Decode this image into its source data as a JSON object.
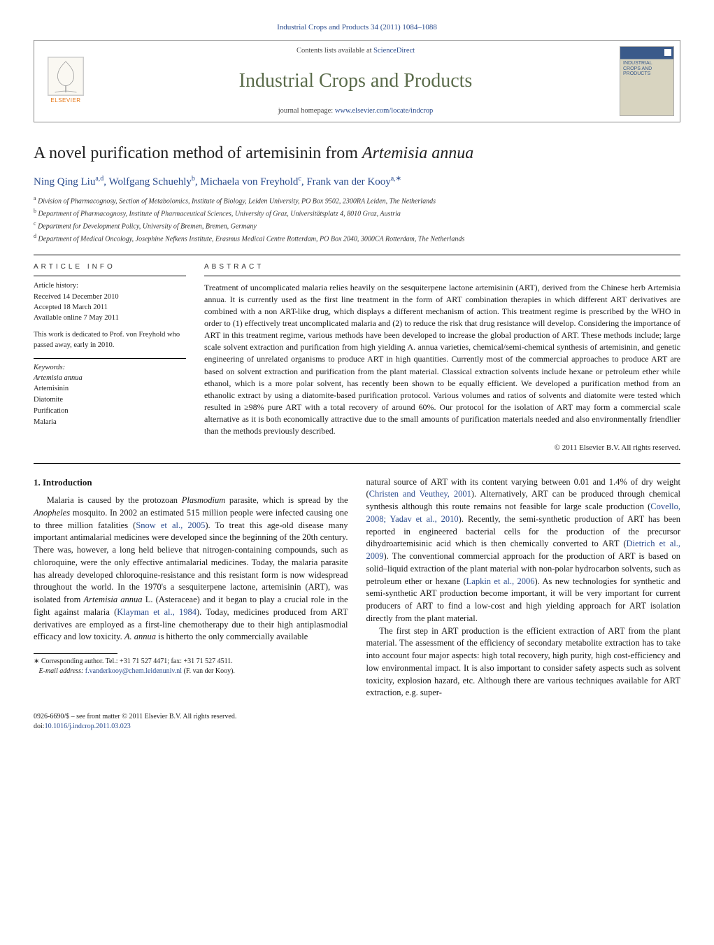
{
  "journal_ref": "Industrial Crops and Products 34 (2011) 1084–1088",
  "header": {
    "contents_prefix": "Contents lists available at ",
    "contents_link": "ScienceDirect",
    "journal_name": "Industrial Crops and Products",
    "homepage_prefix": "journal homepage: ",
    "homepage_link": "www.elsevier.com/locate/indcrop",
    "publisher_name": "ELSEVIER",
    "cover_label": "INDUSTRIAL CROPS AND PRODUCTS"
  },
  "title_pre": "A novel purification method of artemisinin from ",
  "title_ital": "Artemisia annua",
  "authors_html": "Ning Qing Liu<sup>a,d</sup>, Wolfgang Schuehly<sup>b</sup>, Michaela von Freyhold<sup>c</sup>, Frank van der Kooy<sup>a,∗</sup>",
  "affiliations": [
    "Division of Pharmacognosy, Section of Metabolomics, Institute of Biology, Leiden University, PO Box 9502, 2300RA Leiden, The Netherlands",
    "Department of Pharmacognosy, Institute of Pharmaceutical Sciences, University of Graz, Universitätsplatz 4, 8010 Graz, Austria",
    "Department for Development Policy, University of Bremen, Bremen, Germany",
    "Department of Medical Oncology, Josephine Nefkens Institute, Erasmus Medical Centre Rotterdam, PO Box 2040, 3000CA Rotterdam, The Netherlands"
  ],
  "aff_markers": [
    "a",
    "b",
    "c",
    "d"
  ],
  "labels": {
    "article_info": "article info",
    "abstract": "abstract",
    "history": "Article history:",
    "keywords": "Keywords:"
  },
  "history": {
    "received": "Received 14 December 2010",
    "accepted": "Accepted 18 March 2011",
    "online": "Available online 7 May 2011"
  },
  "dedication": "This work is dedicated to Prof. von Freyhold who passed away, early in 2010.",
  "keywords": [
    "Artemisia annua",
    "Artemisinin",
    "Diatomite",
    "Purification",
    "Malaria"
  ],
  "abstract": "Treatment of uncomplicated malaria relies heavily on the sesquiterpene lactone artemisinin (ART), derived from the Chinese herb Artemisia annua. It is currently used as the first line treatment in the form of ART combination therapies in which different ART derivatives are combined with a non ART-like drug, which displays a different mechanism of action. This treatment regime is prescribed by the WHO in order to (1) effectively treat uncomplicated malaria and (2) to reduce the risk that drug resistance will develop. Considering the importance of ART in this treatment regime, various methods have been developed to increase the global production of ART. These methods include; large scale solvent extraction and purification from high yielding A. annua varieties, chemical/semi-chemical synthesis of artemisinin, and genetic engineering of unrelated organisms to produce ART in high quantities. Currently most of the commercial approaches to produce ART are based on solvent extraction and purification from the plant material. Classical extraction solvents include hexane or petroleum ether while ethanol, which is a more polar solvent, has recently been shown to be equally efficient. We developed a purification method from an ethanolic extract by using a diatomite-based purification protocol. Various volumes and ratios of solvents and diatomite were tested which resulted in ≥98% pure ART with a total recovery of around 60%. Our protocol for the isolation of ART may form a commercial scale alternative as it is both economically attractive due to the small amounts of purification materials needed and also environmentally friendlier than the methods previously described.",
  "copyright": "© 2011 Elsevier B.V. All rights reserved.",
  "intro_heading": "1. Introduction",
  "intro_p1_a": "Malaria is caused by the protozoan ",
  "intro_p1_b": "Plasmodium",
  "intro_p1_c": " parasite, which is spread by the ",
  "intro_p1_d": "Anopheles",
  "intro_p1_e": " mosquito. In 2002 an estimated 515 million people were infected causing one to three million fatalities (",
  "intro_p1_cite1": "Snow et al., 2005",
  "intro_p1_f": "). To treat this age-old disease many important antimalarial medicines were developed since the beginning of the 20th century. There was, however, a long held believe that nitrogen-containing compounds, such as chloroquine, were the only effective antimalarial medicines. Today, the malaria parasite has already developed chloroquine-resistance and this resistant form is now widespread throughout the world. In the 1970's a sesquiterpene lactone, artemisinin (ART), was isolated from ",
  "intro_p1_g": "Artemisia annua",
  "intro_p1_h": " L. (Asteraceae) and it began to play a crucial role in the fight against malaria (",
  "intro_p1_cite2": "Klayman et al., 1984",
  "intro_p1_i": "). Today, medicines produced from ART derivatives are employed as a first-line chemotherapy due to their high antiplasmodial efficacy and low toxicity. ",
  "intro_p1_j": "A. annua",
  "intro_p1_k": " is hitherto the only commercially available",
  "intro_p2_a": "natural source of ART with its content varying between 0.01 and 1.4% of dry weight (",
  "intro_p2_cite1": "Christen and Veuthey, 2001",
  "intro_p2_b": "). Alternatively, ART can be produced through chemical synthesis although this route remains not feasible for large scale production (",
  "intro_p2_cite2": "Covello, 2008; Yadav et al., 2010",
  "intro_p2_c": "). Recently, the semi-synthetic production of ART has been reported in engineered bacterial cells for the production of the precursor dihydroartemisinic acid which is then chemically converted to ART (",
  "intro_p2_cite3": "Dietrich et al., 2009",
  "intro_p2_d": "). The conventional commercial approach for the production of ART is based on solid–liquid extraction of the plant material with non-polar hydrocarbon solvents, such as petroleum ether or hexane (",
  "intro_p2_cite4": "Lapkin et al., 2006",
  "intro_p2_e": "). As new technologies for synthetic and semi-synthetic ART production become important, it will be very important for current producers of ART to find a low-cost and high yielding approach for ART isolation directly from the plant material.",
  "intro_p3": "The first step in ART production is the efficient extraction of ART from the plant material. The assessment of the efficiency of secondary metabolite extraction has to take into account four major aspects: high total recovery, high purity, high cost-efficiency and low environmental impact. It is also important to consider safety aspects such as solvent toxicity, explosion hazard, etc. Although there are various techniques available for ART extraction, e.g. super-",
  "footnote": {
    "star": "∗",
    "corr": " Corresponding author. Tel.: +31 71 527 4471; fax: +31 71 527 4511.",
    "email_label": "E-mail address: ",
    "email": "f.vanderkooy@chem.leidenuniv.nl",
    "email_who": " (F. van der Kooy)."
  },
  "footer": {
    "issn": "0926-6690/$ – see front matter © 2011 Elsevier B.V. All rights reserved.",
    "doi_label": "doi:",
    "doi": "10.1016/j.indcrop.2011.03.023"
  },
  "colors": {
    "link": "#2a4b8d",
    "journal_green": "#5a6b4a",
    "elsevier_orange": "#e67817"
  }
}
